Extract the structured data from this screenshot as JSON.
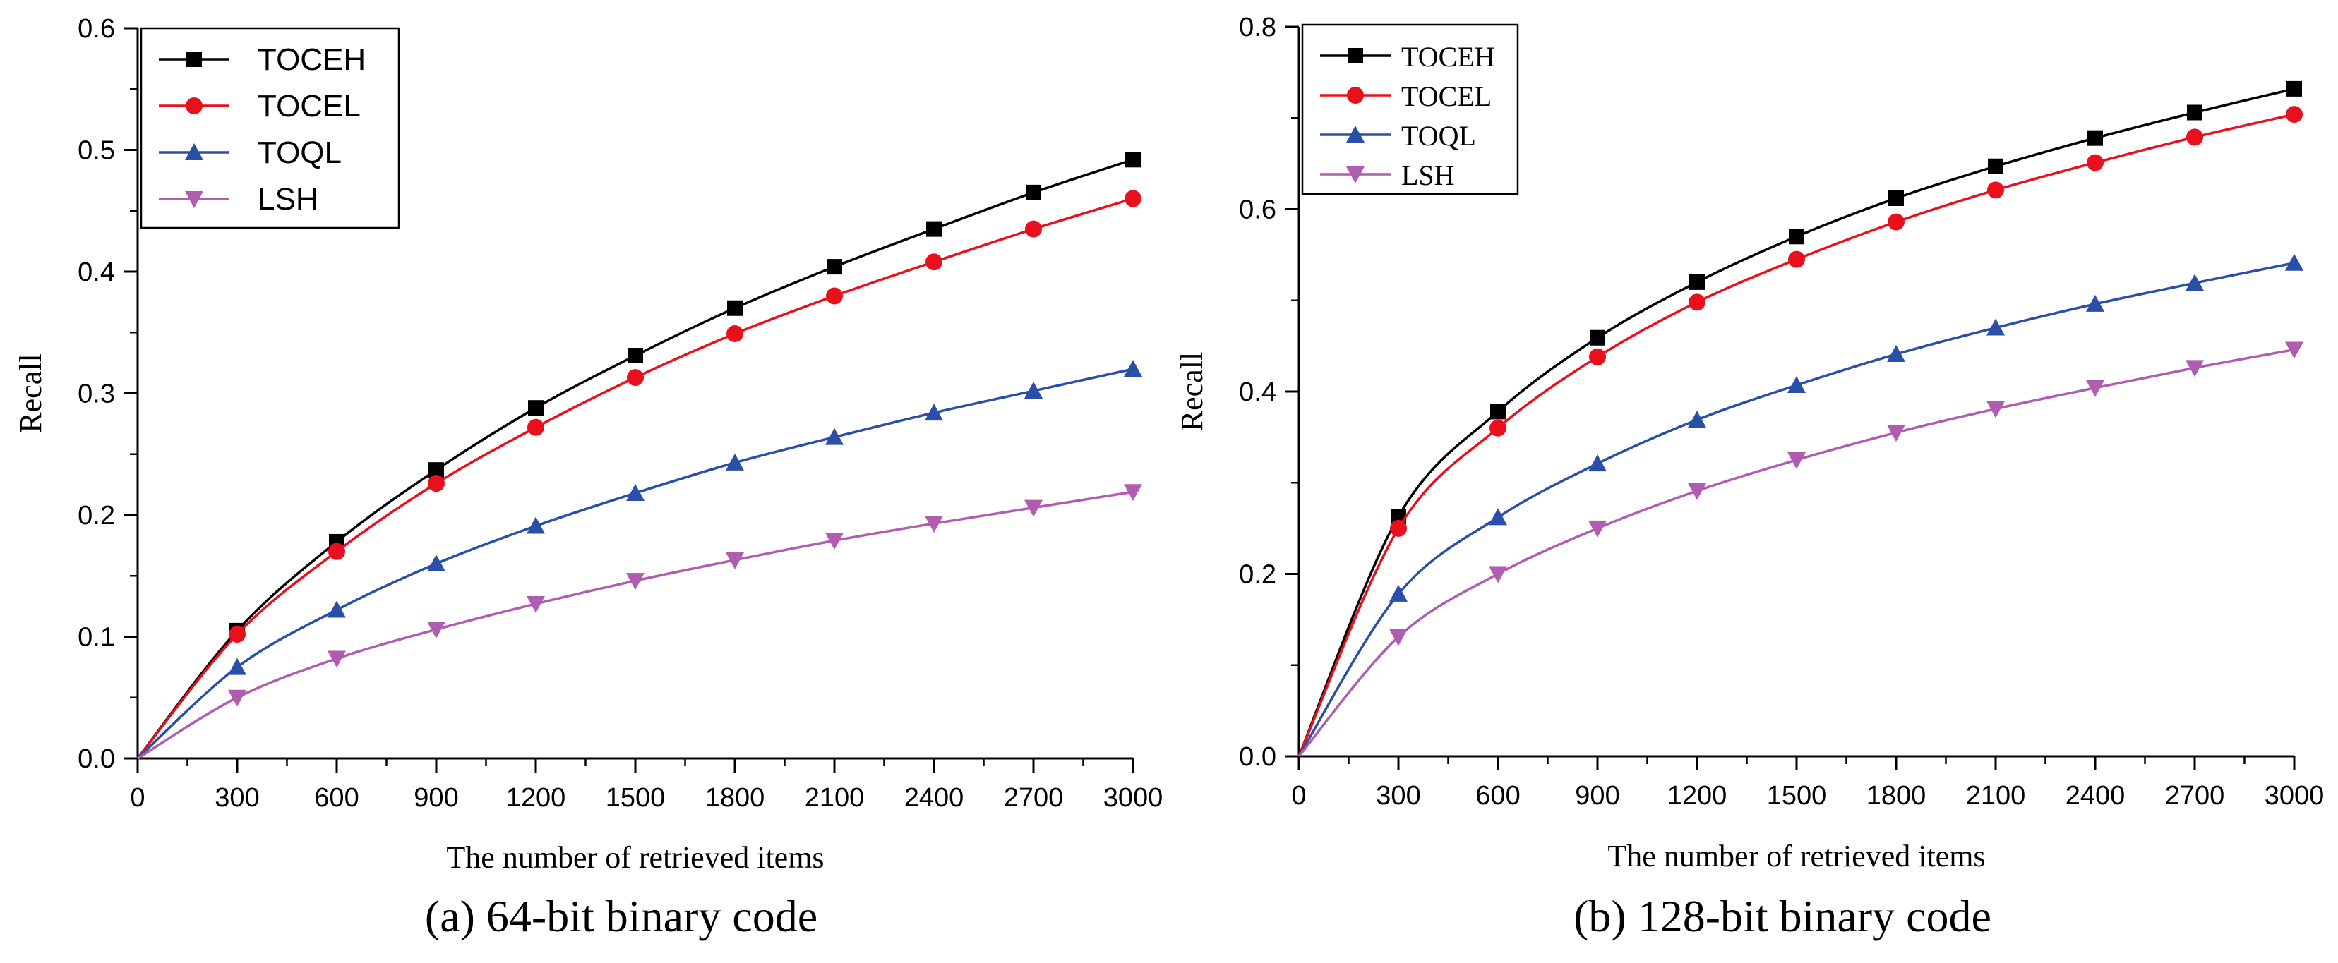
{
  "chart_data": [
    {
      "type": "line",
      "title": "",
      "caption": "(a) 64-bit binary code",
      "xlabel": "The number of retrieved items",
      "ylabel": "Recall",
      "xlim": [
        0,
        3000
      ],
      "ylim": [
        0,
        0.6
      ],
      "x_ticks": [
        0,
        300,
        600,
        900,
        1200,
        1500,
        1800,
        2100,
        2400,
        2700,
        3000
      ],
      "x_tick_labels": [
        "0",
        "300",
        "600",
        "900",
        "1200",
        "1500",
        "1800",
        "2100",
        "2400",
        "2700",
        "3000"
      ],
      "y_ticks": [
        0,
        0.1,
        0.2,
        0.3,
        0.4,
        0.5,
        0.6
      ],
      "y_tick_labels": [
        "0.0",
        "0.1",
        "0.2",
        "0.3",
        "0.4",
        "0.5",
        "0.6"
      ],
      "grid": false,
      "legend_position": "top-left",
      "x": [
        0,
        300,
        600,
        900,
        1200,
        1500,
        1800,
        2100,
        2400,
        2700,
        3000
      ],
      "series": [
        {
          "name": "TOCEH",
          "color": "#000000",
          "marker": "square",
          "values": [
            0.0,
            0.105,
            0.178,
            0.237,
            0.288,
            0.331,
            0.37,
            0.404,
            0.435,
            0.465,
            0.492
          ]
        },
        {
          "name": "TOCEL",
          "color": "#e8101c",
          "marker": "circle",
          "values": [
            0.0,
            0.102,
            0.17,
            0.226,
            0.272,
            0.313,
            0.349,
            0.38,
            0.408,
            0.435,
            0.46
          ]
        },
        {
          "name": "TOQL",
          "color": "#2a4fa8",
          "marker": "triangle-up",
          "values": [
            0.0,
            0.075,
            0.122,
            0.16,
            0.191,
            0.218,
            0.243,
            0.264,
            0.284,
            0.302,
            0.32
          ]
        },
        {
          "name": "LSH",
          "color": "#b05cb0",
          "marker": "triangle-down",
          "values": [
            0.0,
            0.05,
            0.082,
            0.106,
            0.127,
            0.146,
            0.163,
            0.179,
            0.193,
            0.206,
            0.219
          ]
        }
      ]
    },
    {
      "type": "line",
      "title": "",
      "caption": "(b) 128-bit binary code",
      "xlabel": "The number of retrieved items",
      "ylabel": "Recall",
      "xlim": [
        0,
        3000
      ],
      "ylim": [
        0,
        0.8
      ],
      "x_ticks": [
        0,
        300,
        600,
        900,
        1200,
        1500,
        1800,
        2100,
        2400,
        2700,
        3000
      ],
      "x_tick_labels": [
        "0",
        "300",
        "600",
        "900",
        "1200",
        "1500",
        "1800",
        "2100",
        "2400",
        "2700",
        "3000"
      ],
      "y_ticks": [
        0,
        0.2,
        0.4,
        0.6,
        0.8
      ],
      "y_tick_labels": [
        "0.0",
        "0.2",
        "0.4",
        "0.6",
        "0.8"
      ],
      "grid": false,
      "legend_position": "top-left",
      "x": [
        0,
        300,
        600,
        900,
        1200,
        1500,
        1800,
        2100,
        2400,
        2700,
        3000
      ],
      "series": [
        {
          "name": "TOCEH",
          "color": "#000000",
          "marker": "square",
          "values": [
            0.0,
            0.263,
            0.378,
            0.459,
            0.52,
            0.57,
            0.612,
            0.647,
            0.678,
            0.706,
            0.732
          ]
        },
        {
          "name": "TOCEL",
          "color": "#e8101c",
          "marker": "circle",
          "values": [
            0.0,
            0.25,
            0.36,
            0.438,
            0.498,
            0.545,
            0.586,
            0.621,
            0.651,
            0.679,
            0.704
          ]
        },
        {
          "name": "TOQL",
          "color": "#2a4fa8",
          "marker": "triangle-up",
          "values": [
            0.0,
            0.178,
            0.262,
            0.321,
            0.369,
            0.407,
            0.441,
            0.47,
            0.496,
            0.519,
            0.541
          ]
        },
        {
          "name": "LSH",
          "color": "#b05cb0",
          "marker": "triangle-down",
          "values": [
            0.0,
            0.131,
            0.2,
            0.25,
            0.291,
            0.325,
            0.355,
            0.381,
            0.404,
            0.426,
            0.446
          ]
        }
      ]
    }
  ]
}
